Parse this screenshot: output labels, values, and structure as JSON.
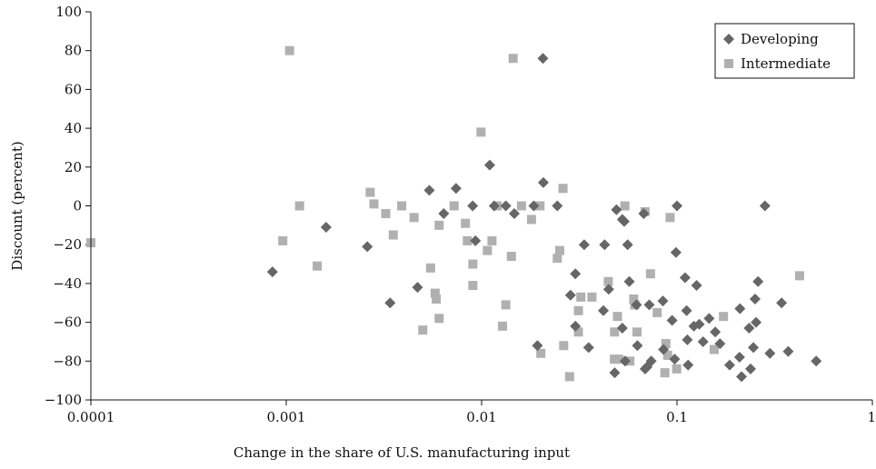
{
  "chart_data": {
    "type": "scatter",
    "xscale": "log",
    "xlabel": "Change in the share of U.S. manufacturing input",
    "ylabel": "Discount (percent)",
    "xlim": [
      0.0001,
      1
    ],
    "ylim": [
      -100,
      100
    ],
    "xticks": [
      0.0001,
      0.001,
      0.01,
      0.1,
      1
    ],
    "xtick_labels": [
      "0.0001",
      "0.001",
      "0.01",
      "0.1",
      "1"
    ],
    "yticks": [
      -100,
      -80,
      -60,
      -40,
      -20,
      0,
      20,
      40,
      60,
      80,
      100
    ],
    "ytick_labels": [
      "−100",
      "−80",
      "−60",
      "−40",
      "−20",
      "0",
      "20",
      "40",
      "60",
      "80",
      "100"
    ],
    "grid": false,
    "legend_position": "top-right",
    "series": [
      {
        "name": "Developing",
        "marker": "diamond",
        "color": "#666666",
        "points": [
          [
            0.00085,
            -34
          ],
          [
            0.0016,
            -11
          ],
          [
            0.0026,
            -21
          ],
          [
            0.0034,
            -50
          ],
          [
            0.0047,
            -42
          ],
          [
            0.0054,
            8
          ],
          [
            0.0064,
            -4
          ],
          [
            0.0074,
            9
          ],
          [
            0.009,
            0
          ],
          [
            0.0093,
            -18
          ],
          [
            0.011,
            21
          ],
          [
            0.0116,
            0
          ],
          [
            0.0133,
            0
          ],
          [
            0.0147,
            -4
          ],
          [
            0.0185,
            0
          ],
          [
            0.0193,
            -72
          ],
          [
            0.0206,
            76
          ],
          [
            0.0207,
            12
          ],
          [
            0.0244,
            0
          ],
          [
            0.0285,
            -46
          ],
          [
            0.0302,
            -35
          ],
          [
            0.0302,
            -62
          ],
          [
            0.0335,
            -20
          ],
          [
            0.0353,
            -73
          ],
          [
            0.042,
            -54
          ],
          [
            0.0426,
            -20
          ],
          [
            0.0447,
            -43
          ],
          [
            0.048,
            -86
          ],
          [
            0.049,
            -2
          ],
          [
            0.0525,
            -63
          ],
          [
            0.0525,
            -7
          ],
          [
            0.0537,
            -8
          ],
          [
            0.0543,
            -80
          ],
          [
            0.0559,
            -20
          ],
          [
            0.057,
            -39
          ],
          [
            0.062,
            -51
          ],
          [
            0.0627,
            -72
          ],
          [
            0.0676,
            -4
          ],
          [
            0.0687,
            -84
          ],
          [
            0.0703,
            -83
          ],
          [
            0.0721,
            -51
          ],
          [
            0.0738,
            -80
          ],
          [
            0.0847,
            -49
          ],
          [
            0.0853,
            -74
          ],
          [
            0.0944,
            -59
          ],
          [
            0.0973,
            -79
          ],
          [
            0.0988,
            -24
          ],
          [
            0.1,
            0
          ],
          [
            0.11,
            -37
          ],
          [
            0.112,
            -54
          ],
          [
            0.113,
            -69
          ],
          [
            0.114,
            -82
          ],
          [
            0.122,
            -62
          ],
          [
            0.126,
            -41
          ],
          [
            0.13,
            -61
          ],
          [
            0.136,
            -70
          ],
          [
            0.146,
            -58
          ],
          [
            0.157,
            -65
          ],
          [
            0.166,
            -71
          ],
          [
            0.186,
            -82
          ],
          [
            0.209,
            -78
          ],
          [
            0.21,
            -53
          ],
          [
            0.214,
            -88
          ],
          [
            0.234,
            -63
          ],
          [
            0.238,
            -84
          ],
          [
            0.246,
            -73
          ],
          [
            0.251,
            -48
          ],
          [
            0.254,
            -60
          ],
          [
            0.26,
            -39
          ],
          [
            0.282,
            0
          ],
          [
            0.299,
            -76
          ],
          [
            0.343,
            -50
          ],
          [
            0.371,
            -75
          ],
          [
            0.516,
            -80
          ]
        ]
      },
      {
        "name": "Intermediate",
        "marker": "square",
        "color": "#b0b0b0",
        "points": [
          [
            0.0001,
            -19
          ],
          [
            0.00096,
            -18
          ],
          [
            0.00104,
            80
          ],
          [
            0.00117,
            0
          ],
          [
            0.00144,
            -31
          ],
          [
            0.00269,
            7
          ],
          [
            0.00281,
            1
          ],
          [
            0.00323,
            -4
          ],
          [
            0.00353,
            -15
          ],
          [
            0.0039,
            0
          ],
          [
            0.00451,
            -6
          ],
          [
            0.005,
            -64
          ],
          [
            0.00548,
            -32
          ],
          [
            0.00578,
            -45
          ],
          [
            0.00586,
            -48
          ],
          [
            0.00606,
            -58
          ],
          [
            0.00606,
            -10
          ],
          [
            0.00723,
            0
          ],
          [
            0.00826,
            -9
          ],
          [
            0.00845,
            -18
          ],
          [
            0.00902,
            -30
          ],
          [
            0.00902,
            -41
          ],
          [
            0.00993,
            38
          ],
          [
            0.0107,
            -23
          ],
          [
            0.0113,
            -18
          ],
          [
            0.012,
            0
          ],
          [
            0.0128,
            -62
          ],
          [
            0.0133,
            -51
          ],
          [
            0.0142,
            -26
          ],
          [
            0.0145,
            76
          ],
          [
            0.016,
            0
          ],
          [
            0.018,
            -7
          ],
          [
            0.0199,
            0
          ],
          [
            0.0201,
            -76
          ],
          [
            0.0244,
            -27
          ],
          [
            0.0251,
            -23
          ],
          [
            0.0261,
            9
          ],
          [
            0.0263,
            -72
          ],
          [
            0.0282,
            -88
          ],
          [
            0.0313,
            -65
          ],
          [
            0.0313,
            -54
          ],
          [
            0.0322,
            -47
          ],
          [
            0.0367,
            -47
          ],
          [
            0.0445,
            -39
          ],
          [
            0.0478,
            -79
          ],
          [
            0.0479,
            -65
          ],
          [
            0.0496,
            -57
          ],
          [
            0.0504,
            -79
          ],
          [
            0.0541,
            0
          ],
          [
            0.0574,
            -80
          ],
          [
            0.06,
            -48
          ],
          [
            0.0608,
            -51
          ],
          [
            0.0624,
            -65
          ],
          [
            0.0686,
            -3
          ],
          [
            0.0732,
            -35
          ],
          [
            0.0792,
            -55
          ],
          [
            0.0867,
            -86
          ],
          [
            0.0877,
            -71
          ],
          [
            0.0896,
            -77
          ],
          [
            0.0922,
            -6
          ],
          [
            0.0996,
            -84
          ],
          [
            0.155,
            -74
          ],
          [
            0.173,
            -57
          ],
          [
            0.424,
            -36
          ]
        ]
      }
    ]
  }
}
